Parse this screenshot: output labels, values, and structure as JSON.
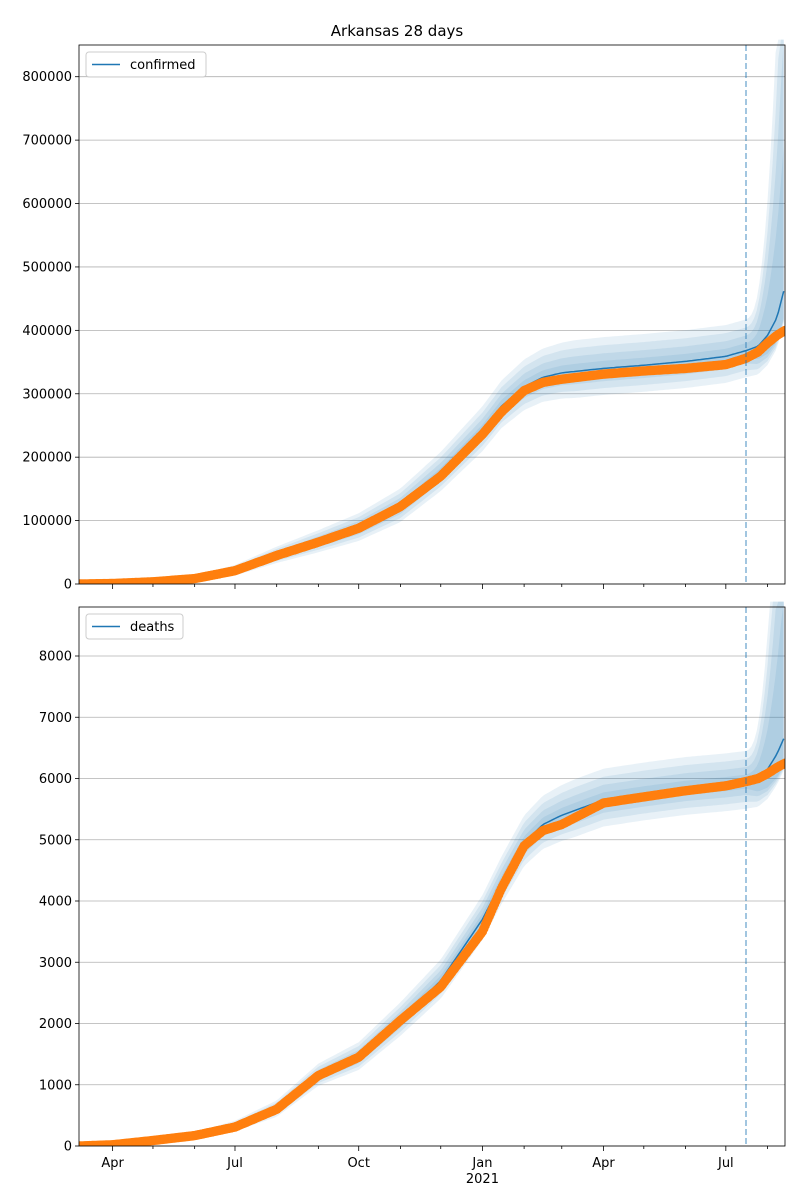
{
  "title": "Arkansas 28 days",
  "colors": {
    "model_line": "#1f77b4",
    "band_fill": "#1f77b4",
    "observed": "#ff7f0e",
    "forecast_start_line": "#1f77b4",
    "grid": "#b0b0b0"
  },
  "chart_data": [
    {
      "type": "line",
      "panel": "top",
      "title": "Arkansas 28 days",
      "legend": [
        "confirmed"
      ],
      "legend_position": "top-left",
      "grid": "y-only",
      "xlim": [
        "2020-03-07",
        "2021-08-14"
      ],
      "ylim": [
        0,
        850000
      ],
      "yticks": [
        0,
        100000,
        200000,
        300000,
        400000,
        500000,
        600000,
        700000,
        800000
      ],
      "ytick_labels": [
        "0",
        "100000",
        "200000",
        "300000",
        "400000",
        "500000",
        "600000",
        "700000",
        "800000"
      ],
      "forecast_start": "2021-07-16",
      "series": [
        {
          "name": "confirmed",
          "x": [
            "2020-03-07",
            "2020-04-01",
            "2020-05-01",
            "2020-06-01",
            "2020-07-01",
            "2020-08-01",
            "2020-09-01",
            "2020-10-01",
            "2020-11-01",
            "2020-12-01",
            "2021-01-01",
            "2021-01-15",
            "2021-02-01",
            "2021-02-15",
            "2021-03-01",
            "2021-04-01",
            "2021-05-01",
            "2021-06-01",
            "2021-07-01",
            "2021-07-16",
            "2021-07-25",
            "2021-08-01",
            "2021-08-08",
            "2021-08-14"
          ],
          "values": [
            0,
            1000,
            3500,
            9000,
            21000,
            45000,
            66000,
            88000,
            122000,
            175000,
            242000,
            280000,
            311000,
            326000,
            333000,
            340000,
            345000,
            351000,
            359000,
            368000,
            375000,
            392000,
            420000,
            470000
          ]
        },
        {
          "name": "observed",
          "x": [
            "2020-03-07",
            "2020-04-01",
            "2020-05-01",
            "2020-06-01",
            "2020-07-01",
            "2020-08-01",
            "2020-09-01",
            "2020-10-01",
            "2020-11-01",
            "2020-12-01",
            "2021-01-01",
            "2021-01-15",
            "2021-02-01",
            "2021-02-15",
            "2021-03-01",
            "2021-04-01",
            "2021-05-01",
            "2021-06-01",
            "2021-07-01",
            "2021-07-16",
            "2021-07-25",
            "2021-08-01",
            "2021-08-08",
            "2021-08-14"
          ],
          "values": [
            0,
            800,
            3500,
            8500,
            21000,
            45000,
            66000,
            88000,
            122000,
            170000,
            236000,
            271000,
            305000,
            318000,
            323000,
            331000,
            336000,
            340000,
            346000,
            356000,
            366000,
            380000,
            392000,
            400000
          ]
        }
      ]
    },
    {
      "type": "line",
      "panel": "bottom",
      "legend": [
        "deaths"
      ],
      "legend_position": "top-left",
      "grid": "y-only",
      "xlim": [
        "2020-03-07",
        "2021-08-14"
      ],
      "ylim": [
        0,
        8800
      ],
      "yticks": [
        0,
        1000,
        2000,
        3000,
        4000,
        5000,
        6000,
        7000,
        8000
      ],
      "ytick_labels": [
        "0",
        "1000",
        "2000",
        "3000",
        "4000",
        "5000",
        "6000",
        "7000",
        "8000"
      ],
      "xtick_labels": [
        "Apr",
        "Jul",
        "Oct",
        "Jan",
        "Apr",
        "Jul"
      ],
      "xtick_dates": [
        "2020-04-01",
        "2020-07-01",
        "2020-10-01",
        "2021-01-01",
        "2021-04-01",
        "2021-07-01"
      ],
      "x_year_label": "2021",
      "forecast_start": "2021-07-16",
      "series": [
        {
          "name": "deaths",
          "x": [
            "2020-03-07",
            "2020-04-01",
            "2020-05-01",
            "2020-06-01",
            "2020-07-01",
            "2020-08-01",
            "2020-09-01",
            "2020-10-01",
            "2020-11-01",
            "2020-12-01",
            "2021-01-01",
            "2021-01-15",
            "2021-02-01",
            "2021-02-15",
            "2021-03-01",
            "2021-04-01",
            "2021-05-01",
            "2021-06-01",
            "2021-07-01",
            "2021-07-16",
            "2021-07-25",
            "2021-08-01",
            "2021-08-08",
            "2021-08-14"
          ],
          "values": [
            0,
            20,
            90,
            180,
            320,
            600,
            1150,
            1450,
            2050,
            2700,
            3700,
            4300,
            4950,
            5250,
            5400,
            5650,
            5750,
            5840,
            5900,
            5940,
            6000,
            6150,
            6400,
            6700
          ]
        },
        {
          "name": "observed",
          "x": [
            "2020-03-07",
            "2020-04-01",
            "2020-05-01",
            "2020-06-01",
            "2020-07-01",
            "2020-08-01",
            "2020-09-01",
            "2020-10-01",
            "2020-11-01",
            "2020-12-01",
            "2021-01-01",
            "2021-01-15",
            "2021-02-01",
            "2021-02-15",
            "2021-03-01",
            "2021-04-01",
            "2021-05-01",
            "2021-06-01",
            "2021-07-01",
            "2021-07-16",
            "2021-07-25",
            "2021-08-01",
            "2021-08-08",
            "2021-08-14"
          ],
          "values": [
            0,
            20,
            90,
            170,
            310,
            600,
            1150,
            1450,
            2050,
            2600,
            3500,
            4200,
            4900,
            5150,
            5250,
            5600,
            5700,
            5800,
            5880,
            5950,
            6000,
            6080,
            6180,
            6250
          ]
        }
      ]
    }
  ]
}
